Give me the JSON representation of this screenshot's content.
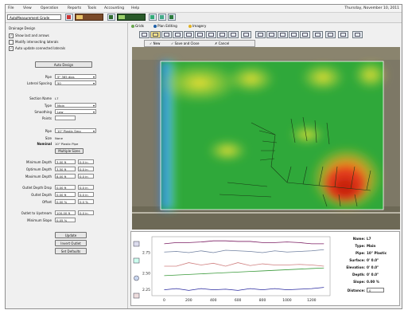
{
  "menubar": {
    "items": [
      "File",
      "View",
      "Operation",
      "Reports",
      "Tools",
      "Accounting",
      "Help"
    ],
    "date": "Thursday, November 10, 2011"
  },
  "toolbar": {
    "project_value": "AutoMeasurement Grade"
  },
  "left_panel": {
    "section_title": "Drainage Design",
    "checkboxes": [
      {
        "label": "Show last and arrows",
        "checked": true
      },
      {
        "label": "Modify intersecting laterals",
        "checked": false
      },
      {
        "label": "Auto update connected laterals",
        "checked": true
      }
    ],
    "auto_design_button": "Auto Design",
    "fields_top": [
      {
        "label": "Pipe",
        "value": "5\" 365 dias",
        "select": true
      },
      {
        "label": "Lateral Spacing",
        "value": "50",
        "select": true
      }
    ],
    "section_name_label": "Section Name",
    "section_name_value": "L7",
    "fields_mid": [
      {
        "label": "Type",
        "value": "Main",
        "select": true
      },
      {
        "label": "Smoothing",
        "value": "Low",
        "select": true
      },
      {
        "label": "Points",
        "value": "",
        "select": false
      }
    ],
    "pipe_label": "Pipe",
    "pipe_value": "10\" Plastic Smo",
    "size_label": "Size",
    "size_value": "None",
    "nominal_label": "Nominal",
    "nominal_value": "10\" Plastic Pipe",
    "multiple_sizes_button": "Multiple Sizes",
    "rows": [
      {
        "label": "Minimum Depth",
        "v1": "3.00 ft",
        "v2": "0.0 in"
      },
      {
        "label": "Optimum Depth",
        "v1": "3.50 ft",
        "v2": "0.0 in"
      },
      {
        "label": "Maximum Depth",
        "v1": "8.00 ft",
        "v2": "0.0 in"
      },
      {
        "label": "Outlet Depth Drop",
        "v1": "0.00 ft",
        "v2": "0.0 in"
      },
      {
        "label": "Outlet Depth",
        "v1": "0.00 ft",
        "v2": "0.0 in"
      },
      {
        "label": "Offset",
        "v1": "0.00 %",
        "v2": "0.0 %"
      },
      {
        "label": "Outlet to Upstream",
        "v1": "100.00 ft",
        "v2": "0.0 in"
      },
      {
        "label": "Minimum Slope",
        "v1": "0.05 %",
        "v2": ""
      }
    ],
    "bottom_buttons": [
      "Update",
      "Invert Outlet",
      "Set Defaults"
    ]
  },
  "tabs": [
    {
      "label": "Grids",
      "color": "#6aa84f"
    },
    {
      "label": "Plan Editing",
      "color": "#1e5fa8"
    },
    {
      "label": "Imagery",
      "color": "#e0b020"
    }
  ],
  "edit_bar": {
    "new_label": "New",
    "save_close_label": "Save and Close",
    "cancel_label": "Cancel"
  },
  "chart_data": {
    "type": "line",
    "x": [
      0,
      100,
      200,
      300,
      400,
      500,
      600,
      700,
      800,
      900,
      1000,
      1100,
      1200,
      1300
    ],
    "x_ticks": [
      0,
      200,
      400,
      600,
      800,
      1000,
      1200
    ],
    "y_tick_labels": [
      "2.75",
      "2.50",
      "2.25"
    ],
    "series": [
      {
        "color": "#7b1e63",
        "values": [
          0.88,
          0.9,
          0.9,
          0.91,
          0.93,
          0.93,
          0.92,
          0.92,
          0.9,
          0.9,
          0.91,
          0.9,
          0.88,
          0.88
        ]
      },
      {
        "color": "#7080a0",
        "values": [
          0.74,
          0.75,
          0.73,
          0.76,
          0.73,
          0.77,
          0.76,
          0.75,
          0.73,
          0.76,
          0.74,
          0.75,
          0.76,
          0.78
        ]
      },
      {
        "color": "#d08080",
        "values": [
          0.5,
          0.5,
          0.56,
          0.52,
          0.55,
          0.5,
          0.56,
          0.51,
          0.54,
          0.52,
          0.52,
          0.53,
          0.52,
          0.5
        ]
      },
      {
        "color": "#3a9a3a",
        "values": [
          0.34,
          0.35,
          0.36,
          0.37,
          0.38,
          0.39,
          0.4,
          0.41,
          0.42,
          0.43,
          0.44,
          0.45,
          0.46,
          0.47
        ]
      },
      {
        "color": "#2a2aa0",
        "values": [
          0.1,
          0.12,
          0.09,
          0.12,
          0.1,
          0.11,
          0.09,
          0.12,
          0.1,
          0.12,
          0.1,
          0.11,
          0.12,
          0.14
        ]
      }
    ],
    "ylim": [
      0,
      1
    ],
    "xlim": [
      -100,
      1350
    ],
    "grid": false
  },
  "properties": [
    {
      "key": "Name:",
      "value": "L7"
    },
    {
      "key": "Type:",
      "value": "Main"
    },
    {
      "key": "Pipe:",
      "value": "10\" Plastic"
    },
    {
      "key": "Surface:",
      "value": "0' 0.0\""
    },
    {
      "key": "Elevation:",
      "value": "0' 0.0\""
    },
    {
      "key": "Depth:",
      "value": "0' 0.0\""
    },
    {
      "key": "Slope:",
      "value": "0.00 %"
    }
  ],
  "distance_label": "Distance:",
  "distance_value": "0"
}
